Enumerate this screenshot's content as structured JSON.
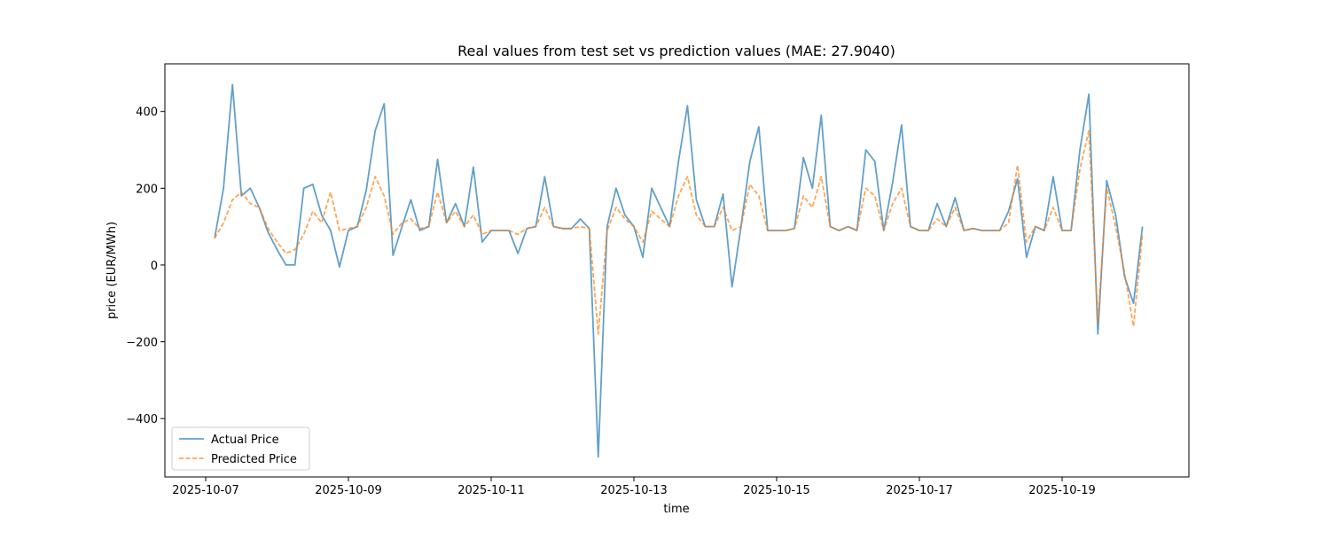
{
  "chart_data": {
    "type": "line",
    "title": "Real values from test set vs prediction values (MAE: 27.9040)",
    "xlabel": "time",
    "ylabel": "price (EUR/MWh)",
    "xlim": [
      "2025-10-06 10:17",
      "2025-10-20 18:38"
    ],
    "xticks": [
      "2025-10-07",
      "2025-10-09",
      "2025-10-11",
      "2025-10-13",
      "2025-10-15",
      "2025-10-17",
      "2025-10-19"
    ],
    "ylim": [
      -552,
      524
    ],
    "yticks": [
      {
        "value": -400,
        "label": "−400"
      },
      {
        "value": -200,
        "label": "−200"
      },
      0,
      200,
      400
    ],
    "legend": "lower left",
    "x": [
      "2025-10-07 03:00",
      "2025-10-07 06:00",
      "2025-10-07 09:00",
      "2025-10-07 12:00",
      "2025-10-07 15:00",
      "2025-10-07 18:00",
      "2025-10-07 21:00",
      "2025-10-08 00:00",
      "2025-10-08 03:00",
      "2025-10-08 06:00",
      "2025-10-08 09:00",
      "2025-10-08 12:00",
      "2025-10-08 15:00",
      "2025-10-08 18:00",
      "2025-10-08 21:00",
      "2025-10-09 00:00",
      "2025-10-09 03:00",
      "2025-10-09 06:00",
      "2025-10-09 09:00",
      "2025-10-09 12:00",
      "2025-10-09 15:00",
      "2025-10-09 18:00",
      "2025-10-09 21:00",
      "2025-10-10 00:00",
      "2025-10-10 03:00",
      "2025-10-10 06:00",
      "2025-10-10 09:00",
      "2025-10-10 12:00",
      "2025-10-10 15:00",
      "2025-10-10 18:00",
      "2025-10-10 21:00",
      "2025-10-11 00:00",
      "2025-10-11 03:00",
      "2025-10-11 06:00",
      "2025-10-11 09:00",
      "2025-10-11 12:00",
      "2025-10-11 15:00",
      "2025-10-11 18:00",
      "2025-10-11 21:00",
      "2025-10-12 00:00",
      "2025-10-12 03:00",
      "2025-10-12 06:00",
      "2025-10-12 09:00",
      "2025-10-12 12:00",
      "2025-10-12 15:00",
      "2025-10-12 18:00",
      "2025-10-12 21:00",
      "2025-10-13 00:00",
      "2025-10-13 03:00",
      "2025-10-13 06:00",
      "2025-10-13 09:00",
      "2025-10-13 12:00",
      "2025-10-13 15:00",
      "2025-10-13 18:00",
      "2025-10-13 21:00",
      "2025-10-14 00:00",
      "2025-10-14 03:00",
      "2025-10-14 06:00",
      "2025-10-14 09:00",
      "2025-10-14 12:00",
      "2025-10-14 15:00",
      "2025-10-14 18:00",
      "2025-10-14 21:00",
      "2025-10-15 00:00",
      "2025-10-15 03:00",
      "2025-10-15 06:00",
      "2025-10-15 09:00",
      "2025-10-15 12:00",
      "2025-10-15 15:00",
      "2025-10-15 18:00",
      "2025-10-15 21:00",
      "2025-10-16 00:00",
      "2025-10-16 03:00",
      "2025-10-16 06:00",
      "2025-10-16 09:00",
      "2025-10-16 12:00",
      "2025-10-16 15:00",
      "2025-10-16 18:00",
      "2025-10-16 21:00",
      "2025-10-17 00:00",
      "2025-10-17 03:00",
      "2025-10-17 06:00",
      "2025-10-17 09:00",
      "2025-10-17 12:00",
      "2025-10-17 15:00",
      "2025-10-17 18:00",
      "2025-10-17 21:00",
      "2025-10-18 00:00",
      "2025-10-18 03:00",
      "2025-10-18 06:00",
      "2025-10-18 09:00",
      "2025-10-18 12:00",
      "2025-10-18 15:00",
      "2025-10-18 18:00",
      "2025-10-18 21:00",
      "2025-10-19 00:00",
      "2025-10-19 03:00",
      "2025-10-19 06:00",
      "2025-10-19 09:00",
      "2025-10-19 12:00",
      "2025-10-19 15:00",
      "2025-10-19 18:00",
      "2025-10-19 21:00",
      "2025-10-20 00:00",
      "2025-10-20 03:00"
    ],
    "series": [
      {
        "name": "Actual Price",
        "color": "#1f77b4",
        "dash": false,
        "values": [
          70,
          200,
          470,
          180,
          200,
          150,
          85,
          40,
          0,
          0,
          200,
          210,
          130,
          90,
          -5,
          90,
          100,
          195,
          350,
          420,
          25,
          100,
          170,
          90,
          100,
          275,
          110,
          160,
          100,
          255,
          60,
          90,
          90,
          90,
          30,
          95,
          100,
          230,
          100,
          95,
          95,
          120,
          95,
          -500,
          100,
          200,
          130,
          100,
          20,
          200,
          150,
          100,
          270,
          415,
          170,
          100,
          100,
          185,
          -57,
          100,
          270,
          360,
          90,
          90,
          90,
          95,
          280,
          200,
          390,
          100,
          90,
          100,
          90,
          300,
          270,
          90,
          215,
          365,
          100,
          90,
          90,
          160,
          100,
          175,
          90,
          95,
          90,
          90,
          90,
          140,
          225,
          20,
          100,
          90,
          230,
          90,
          90,
          300,
          445,
          -180,
          220,
          130,
          -30,
          -100,
          100
        ]
      },
      {
        "name": "Predicted Price",
        "color": "#ff7f0e",
        "dash": true,
        "values": [
          70,
          110,
          170,
          190,
          160,
          150,
          95,
          60,
          30,
          40,
          80,
          140,
          110,
          190,
          90,
          95,
          100,
          150,
          230,
          180,
          80,
          110,
          120,
          95,
          100,
          190,
          110,
          140,
          100,
          130,
          80,
          90,
          90,
          90,
          80,
          95,
          100,
          150,
          100,
          95,
          95,
          100,
          95,
          -180,
          90,
          150,
          120,
          100,
          60,
          140,
          120,
          100,
          180,
          230,
          130,
          100,
          100,
          150,
          90,
          100,
          210,
          180,
          90,
          90,
          90,
          95,
          180,
          150,
          230,
          100,
          90,
          100,
          90,
          200,
          180,
          90,
          160,
          200,
          100,
          90,
          90,
          120,
          100,
          150,
          90,
          95,
          90,
          90,
          90,
          110,
          260,
          60,
          100,
          90,
          150,
          90,
          90,
          250,
          350,
          -150,
          200,
          100,
          -20,
          -160,
          80
        ]
      }
    ]
  }
}
